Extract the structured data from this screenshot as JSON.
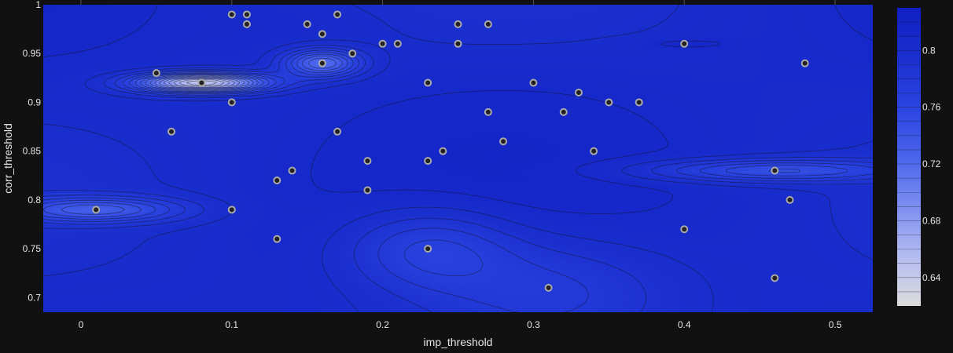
{
  "chart_data": {
    "type": "contour",
    "title": "",
    "xlabel": "imp_threshold",
    "ylabel": "corr_threshold",
    "xlim": [
      -0.025,
      0.525
    ],
    "ylim": [
      0.685,
      1.0
    ],
    "x_ticks": [
      0,
      0.1,
      0.2,
      0.3,
      0.4,
      0.5
    ],
    "x_tick_labels": [
      "0",
      "0.1",
      "0.2",
      "0.3",
      "0.4",
      "0.5"
    ],
    "y_ticks": [
      0.7,
      0.75,
      0.8,
      0.85,
      0.9,
      0.95,
      1.0
    ],
    "y_tick_labels": [
      "0.7",
      "0.75",
      "0.8",
      "0.85",
      "0.9",
      "0.95",
      "1"
    ],
    "colorbar": {
      "range": [
        0.62,
        0.83
      ],
      "ticks": [
        0.64,
        0.68,
        0.72,
        0.76,
        0.8
      ],
      "tick_labels": [
        "0.64",
        "0.68",
        "0.72",
        "0.76",
        "0.8"
      ],
      "colors": [
        "#dcdcdc",
        "#b4bcf0",
        "#7d8ef0",
        "#4a64ec",
        "#2a44e0",
        "#1b2fcf",
        "#1020c2"
      ]
    },
    "points": [
      {
        "x": 0.1,
        "y": 0.99
      },
      {
        "x": 0.11,
        "y": 0.99
      },
      {
        "x": 0.17,
        "y": 0.99
      },
      {
        "x": 0.11,
        "y": 0.98
      },
      {
        "x": 0.15,
        "y": 0.98
      },
      {
        "x": 0.25,
        "y": 0.98
      },
      {
        "x": 0.27,
        "y": 0.98
      },
      {
        "x": 0.16,
        "y": 0.97
      },
      {
        "x": 0.2,
        "y": 0.96
      },
      {
        "x": 0.21,
        "y": 0.96
      },
      {
        "x": 0.25,
        "y": 0.96
      },
      {
        "x": 0.4,
        "y": 0.96
      },
      {
        "x": 0.18,
        "y": 0.95
      },
      {
        "x": 0.16,
        "y": 0.94
      },
      {
        "x": 0.48,
        "y": 0.94
      },
      {
        "x": 0.05,
        "y": 0.93
      },
      {
        "x": 0.08,
        "y": 0.92
      },
      {
        "x": 0.23,
        "y": 0.92
      },
      {
        "x": 0.3,
        "y": 0.92
      },
      {
        "x": 0.33,
        "y": 0.91
      },
      {
        "x": 0.1,
        "y": 0.9
      },
      {
        "x": 0.35,
        "y": 0.9
      },
      {
        "x": 0.37,
        "y": 0.9
      },
      {
        "x": 0.27,
        "y": 0.89
      },
      {
        "x": 0.32,
        "y": 0.89
      },
      {
        "x": 0.06,
        "y": 0.87
      },
      {
        "x": 0.17,
        "y": 0.87
      },
      {
        "x": 0.28,
        "y": 0.86
      },
      {
        "x": 0.24,
        "y": 0.85
      },
      {
        "x": 0.34,
        "y": 0.85
      },
      {
        "x": 0.19,
        "y": 0.84
      },
      {
        "x": 0.23,
        "y": 0.84
      },
      {
        "x": 0.14,
        "y": 0.83
      },
      {
        "x": 0.46,
        "y": 0.83
      },
      {
        "x": 0.13,
        "y": 0.82
      },
      {
        "x": 0.19,
        "y": 0.81
      },
      {
        "x": 0.47,
        "y": 0.8
      },
      {
        "x": 0.01,
        "y": 0.79
      },
      {
        "x": 0.1,
        "y": 0.79
      },
      {
        "x": 0.4,
        "y": 0.77
      },
      {
        "x": 0.13,
        "y": 0.76
      },
      {
        "x": 0.23,
        "y": 0.75
      },
      {
        "x": 0.46,
        "y": 0.72
      },
      {
        "x": 0.31,
        "y": 0.71
      }
    ],
    "features": [
      {
        "x": 0.08,
        "y": 0.92,
        "value": 0.64,
        "sx": 0.03,
        "sy": 0.007
      },
      {
        "x": 0.16,
        "y": 0.94,
        "value": 0.72,
        "sx": 0.018,
        "sy": 0.01
      },
      {
        "x": 0.01,
        "y": 0.79,
        "value": 0.74,
        "sx": 0.04,
        "sy": 0.009
      },
      {
        "x": 0.46,
        "y": 0.83,
        "value": 0.75,
        "sx": 0.06,
        "sy": 0.008
      },
      {
        "x": 0.23,
        "y": 0.75,
        "value": 0.765,
        "sx": 0.04,
        "sy": 0.03
      },
      {
        "x": 0.31,
        "y": 0.71,
        "value": 0.775,
        "sx": 0.06,
        "sy": 0.04
      },
      {
        "x": 0.4,
        "y": 0.96,
        "value": 0.815,
        "sx": 0.025,
        "sy": 0.004
      },
      {
        "x": 0.15,
        "y": 0.98,
        "value": 0.81,
        "sx": 0.04,
        "sy": 0.02
      },
      {
        "x": 0.28,
        "y": 0.91,
        "value": 0.81,
        "sx": 0.08,
        "sy": 0.04
      }
    ]
  }
}
